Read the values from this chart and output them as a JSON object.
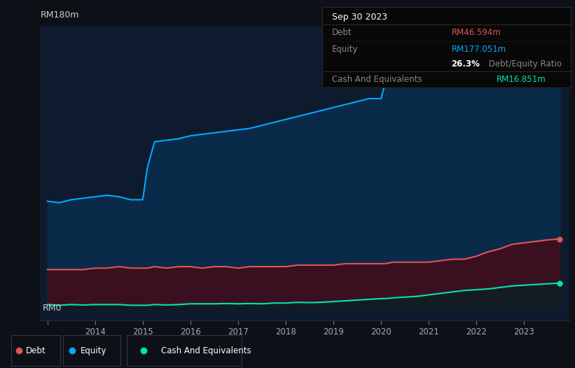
{
  "bg_color": "#0d1117",
  "plot_bg_color": "#0e1a2e",
  "equity_color": "#00aaff",
  "debt_color": "#e05555",
  "cash_color": "#00e5b0",
  "equity_fill": "#0a2a4a",
  "debt_fill": "#3a1020",
  "cash_fill": "#0a2020",
  "grid_color": "#1a2a3a",
  "ylabel_top": "RM180m",
  "ylabel_bottom": "RM0",
  "tooltip_title": "Sep 30 2023",
  "tooltip_bg": "#080808",
  "tooltip_border": "#2a2a2a",
  "debt_val": "RM46.594m",
  "equity_val": "RM177.051m",
  "ratio_val": "26.3%",
  "ratio_label": " Debt/Equity Ratio",
  "cash_val": "RM16.851m",
  "label_color": "#888888",
  "white": "#ffffff",
  "years": [
    2013.0,
    2013.25,
    2013.5,
    2013.75,
    2014.0,
    2014.25,
    2014.5,
    2014.75,
    2015.0,
    2015.1,
    2015.25,
    2015.5,
    2015.75,
    2016.0,
    2016.25,
    2016.5,
    2016.75,
    2017.0,
    2017.25,
    2017.5,
    2017.75,
    2018.0,
    2018.25,
    2018.5,
    2018.75,
    2019.0,
    2019.25,
    2019.5,
    2019.75,
    2020.0,
    2020.1,
    2020.25,
    2020.5,
    2020.75,
    2021.0,
    2021.25,
    2021.5,
    2021.75,
    2022.0,
    2022.25,
    2022.5,
    2022.75,
    2023.0,
    2023.25,
    2023.5,
    2023.75
  ],
  "equity": [
    72,
    71,
    73,
    74,
    75,
    76,
    75,
    73,
    73,
    95,
    112,
    113,
    114,
    116,
    117,
    118,
    119,
    120,
    121,
    123,
    125,
    127,
    129,
    131,
    133,
    135,
    137,
    139,
    141,
    141,
    153,
    155,
    157,
    158,
    160,
    161,
    162,
    163,
    165,
    167,
    169,
    172,
    174,
    175,
    177,
    177.051
  ],
  "debt": [
    26,
    26,
    26,
    26,
    27,
    27,
    28,
    27,
    27,
    27,
    28,
    27,
    28,
    28,
    27,
    28,
    28,
    27,
    28,
    28,
    28,
    28,
    29,
    29,
    29,
    29,
    30,
    30,
    30,
    30,
    30,
    31,
    31,
    31,
    31,
    32,
    33,
    33,
    35,
    38,
    40,
    43,
    44,
    45,
    46,
    46.594
  ],
  "cash": [
    2.5,
    2.0,
    2.5,
    2.2,
    2.5,
    2.5,
    2.5,
    2.0,
    2.0,
    2.0,
    2.5,
    2.2,
    2.5,
    3.0,
    3.0,
    3.0,
    3.2,
    3.0,
    3.2,
    3.0,
    3.5,
    3.5,
    4.0,
    3.8,
    4.0,
    4.5,
    5.0,
    5.5,
    6.0,
    6.5,
    6.5,
    7.0,
    7.5,
    8.0,
    9.0,
    10.0,
    11.0,
    12.0,
    12.5,
    13.0,
    14.0,
    15.0,
    15.5,
    16.0,
    16.5,
    16.851
  ],
  "ylim_max": 190,
  "ylim_min": -8,
  "xlim_min": 2012.85,
  "xlim_max": 2023.95
}
